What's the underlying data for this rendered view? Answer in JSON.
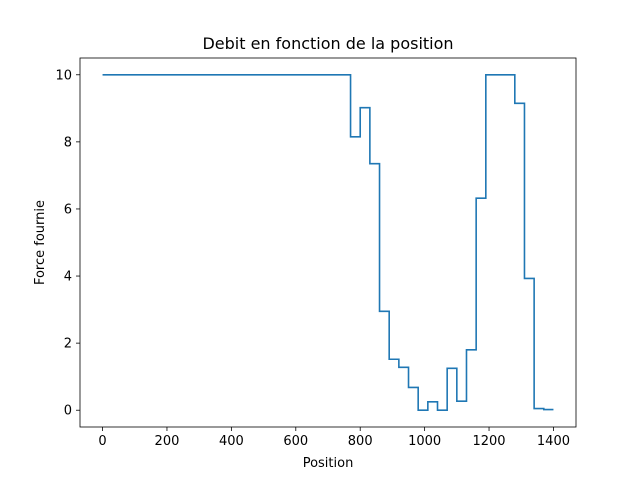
{
  "chart_data": {
    "type": "line",
    "drawstyle": "steps-post",
    "title": "Debit en fonction de la position",
    "xlabel": "Position",
    "ylabel": "Force fournie",
    "xlim": [
      -70,
      1470
    ],
    "ylim": [
      -0.5,
      10.5
    ],
    "xticks": [
      0,
      200,
      400,
      600,
      800,
      1000,
      1200,
      1400
    ],
    "yticks": [
      0,
      2,
      4,
      6,
      8,
      10
    ],
    "grid": false,
    "legend": "none",
    "series": [
      {
        "color": "#1f77b4",
        "x": [
          0,
          740,
          770,
          800,
          830,
          860,
          890,
          920,
          950,
          980,
          1010,
          1040,
          1070,
          1100,
          1130,
          1160,
          1190,
          1220,
          1250,
          1280,
          1310,
          1340,
          1370,
          1400
        ],
        "y": [
          10,
          10,
          8.15,
          9.02,
          7.35,
          2.95,
          1.52,
          1.28,
          0.68,
          0.0,
          0.25,
          0.0,
          1.25,
          0.27,
          1.8,
          6.32,
          10,
          10,
          10,
          9.15,
          3.93,
          0.05,
          0.02,
          0.02
        ]
      }
    ]
  }
}
